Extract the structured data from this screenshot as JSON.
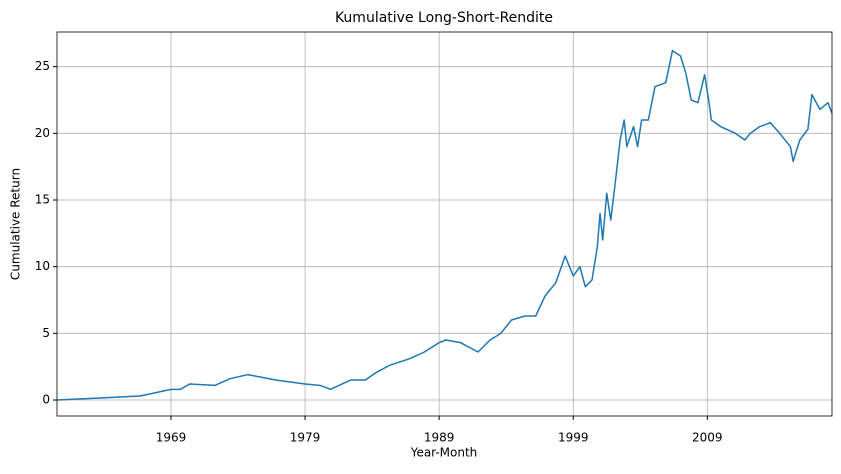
{
  "chart_data": {
    "type": "line",
    "title": "Kumulative Long-Short-Rendite",
    "x_label": "Year-Month",
    "y_label": "Cumulative Return",
    "x": [
      1960.5,
      1963.7,
      1966.7,
      1969.0,
      1969.7,
      1970.4,
      1972.3,
      1973.4,
      1974.7,
      1975.8,
      1976.8,
      1979.0,
      1980.1,
      1980.9,
      1982.4,
      1983.5,
      1984.2,
      1985.3,
      1986.8,
      1987.9,
      1989.0,
      1989.5,
      1990.6,
      1991.9,
      1992.8,
      1993.6,
      1994.4,
      1995.4,
      1996.2,
      1996.9,
      1997.7,
      1998.4,
      1999.0,
      1999.5,
      1999.9,
      2000.4,
      2000.8,
      2001.0,
      2001.2,
      2001.5,
      2001.8,
      2002.1,
      2002.5,
      2002.8,
      2003.0,
      2003.5,
      2003.8,
      2004.1,
      2004.6,
      2005.1,
      2005.9,
      2006.4,
      2007.0,
      2007.4,
      2007.8,
      2008.3,
      2008.8,
      2009.1,
      2009.3,
      2010.0,
      2011.1,
      2011.8,
      2012.2,
      2012.9,
      2013.7,
      2014.4,
      2015.2,
      2015.4,
      2015.9,
      2016.5,
      2016.8,
      2017.4,
      2018.0,
      2018.3
    ],
    "series": [
      {
        "name": "Cumulative Return",
        "color": "#1f77b4",
        "values": [
          0.0,
          0.15,
          0.3,
          0.8,
          0.8,
          1.2,
          1.1,
          1.6,
          1.9,
          1.7,
          1.5,
          1.2,
          1.1,
          0.8,
          1.5,
          1.5,
          2.0,
          2.6,
          3.1,
          3.6,
          4.3,
          4.5,
          4.3,
          3.6,
          4.5,
          5.0,
          6.0,
          6.3,
          6.3,
          7.8,
          8.8,
          10.8,
          9.3,
          10.0,
          8.5,
          9.0,
          11.5,
          14.0,
          12.0,
          15.5,
          13.5,
          16.0,
          19.5,
          21.0,
          19.0,
          20.5,
          19.0,
          21.0,
          21.0,
          23.5,
          23.8,
          26.2,
          25.8,
          24.5,
          22.5,
          22.3,
          24.4,
          22.5,
          21.0,
          20.5,
          20.0,
          19.5,
          20.0,
          20.5,
          20.8,
          20.0,
          19.0,
          17.9,
          19.5,
          20.3,
          22.9,
          21.8,
          22.3,
          21.5
        ]
      }
    ],
    "xlim": [
      1960.5,
      2018.3
    ],
    "xticks": [
      1969,
      1979,
      1989,
      1999,
      2009
    ],
    "ylim": [
      -1.2,
      27.6
    ],
    "yticks": [
      0,
      5,
      10,
      15,
      20,
      25
    ],
    "grid": true
  }
}
